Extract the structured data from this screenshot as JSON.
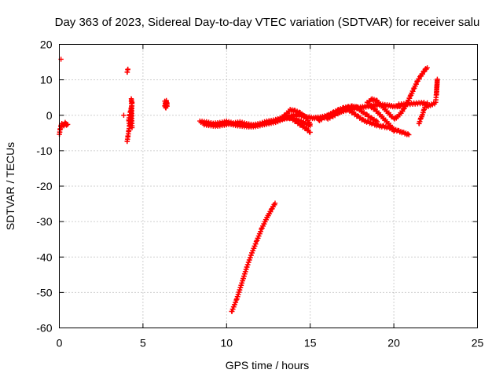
{
  "chart_data": {
    "type": "scatter",
    "title": "Day 363 of 2023, Sidereal Day-to-day VTEC variation (SDTVAR) for receiver salu",
    "xlabel": "GPS time / hours",
    "ylabel": "SDTVAR / TECUs",
    "xlim": [
      0,
      25
    ],
    "ylim": [
      -60,
      20
    ],
    "xticks": [
      0,
      5,
      10,
      15,
      20,
      25
    ],
    "yticks": [
      -60,
      -50,
      -40,
      -30,
      -20,
      -10,
      0,
      10,
      20
    ],
    "grid": true,
    "marker": "+",
    "color": "#ff0000",
    "series": [
      {
        "name": "SDTVAR",
        "segments": [
          {
            "x": [
              0.0,
              0.05,
              0.1,
              0.15,
              0.2,
              0.25,
              0.3,
              0.35,
              0.4,
              0.45,
              0.5
            ],
            "y": [
              -5.5,
              -4.0,
              -3.0,
              -2.5,
              -2.8,
              -3.0,
              -2.6,
              -2.2,
              -2.5,
              -2.8,
              -2.6
            ]
          },
          {
            "x": [
              0.1
            ],
            "y": [
              15.8
            ]
          },
          {
            "x": [
              3.85,
              4.05,
              4.1,
              4.05,
              4.1,
              4.15,
              4.2,
              4.15,
              4.2,
              4.25,
              4.3,
              4.25,
              4.3,
              4.35,
              4.3,
              4.35
            ],
            "y": [
              0.0,
              12.0,
              13.0,
              -7.5,
              -6.0,
              -4.5,
              -3.0,
              -1.5,
              0.0,
              1.0,
              2.0,
              -3.0,
              -1.0,
              3.5,
              4.5,
              -3.5
            ]
          },
          {
            "x": [
              6.3,
              6.35,
              6.4,
              6.45,
              6.35,
              6.4,
              6.3,
              6.45
            ],
            "y": [
              2.5,
              3.2,
              4.0,
              3.0,
              2.0,
              3.6,
              3.8,
              2.6
            ]
          },
          {
            "x": [
              8.4,
              8.8,
              9.2,
              9.6,
              10.0,
              10.4,
              10.8,
              11.2,
              11.6,
              12.0,
              12.4,
              12.8,
              13.2,
              13.6,
              14.0,
              14.4,
              14.8,
              15.2,
              15.6,
              16.0,
              16.4,
              16.8,
              17.2,
              17.6,
              18.0,
              18.4,
              18.8,
              19.2,
              19.6,
              20.0,
              20.4
            ],
            "y": [
              -1.8,
              -2.0,
              -2.4,
              -2.2,
              -1.8,
              -2.3,
              -2.0,
              -2.5,
              -2.8,
              -2.4,
              -1.8,
              -1.5,
              -1.0,
              -0.5,
              0.0,
              0.0,
              -0.5,
              -0.8,
              -0.6,
              -0.2,
              0.5,
              1.0,
              1.5,
              2.0,
              2.2,
              2.5,
              2.8,
              3.0,
              2.8,
              2.5,
              2.6
            ]
          },
          {
            "x": [
              8.6,
              9.0,
              9.4,
              9.8,
              10.2,
              10.6,
              11.0,
              11.4,
              11.8,
              12.2,
              12.6,
              13.0,
              13.4,
              13.8,
              14.2,
              14.6,
              15.0
            ],
            "y": [
              -2.5,
              -2.8,
              -3.0,
              -2.7,
              -2.4,
              -2.8,
              -3.0,
              -3.2,
              -3.0,
              -2.6,
              -2.2,
              -1.8,
              -1.0,
              -0.6,
              -1.2,
              -2.0,
              -3.0
            ]
          },
          {
            "x": [
              13.2,
              13.5,
              13.8,
              14.1,
              14.4,
              14.7,
              15.0
            ],
            "y": [
              -1.0,
              0.0,
              1.5,
              1.2,
              0.6,
              -0.5,
              -2.5
            ]
          },
          {
            "x": [
              13.0,
              13.3,
              13.6,
              13.9,
              14.2,
              14.5,
              14.8,
              15.0
            ],
            "y": [
              -1.5,
              -1.0,
              -0.5,
              -1.0,
              -2.0,
              -3.0,
              -4.0,
              -4.8
            ]
          },
          {
            "x": [
              15.5,
              15.8,
              16.1,
              16.4,
              16.7,
              17.0,
              17.3,
              17.6,
              17.9
            ],
            "y": [
              -1.5,
              -0.8,
              0.0,
              0.8,
              1.5,
              2.0,
              2.3,
              2.2,
              2.0
            ]
          },
          {
            "x": [
              16.0,
              16.3,
              16.6,
              16.9,
              17.2,
              17.5,
              17.8,
              18.1,
              18.4,
              18.7,
              19.0
            ],
            "y": [
              -1.0,
              -0.4,
              0.4,
              1.2,
              2.0,
              2.5,
              2.2,
              1.0,
              0.0,
              -1.0,
              -1.8
            ]
          },
          {
            "x": [
              17.0,
              17.3,
              17.6,
              17.9,
              18.2,
              18.5,
              18.8,
              19.1,
              19.4,
              19.7,
              20.0,
              20.3,
              20.6,
              20.9
            ],
            "y": [
              2.0,
              1.5,
              0.5,
              -0.5,
              -1.5,
              -2.0,
              -2.5,
              -3.0,
              -3.2,
              -3.5,
              -4.0,
              -4.5,
              -5.0,
              -5.5
            ]
          },
          {
            "x": [
              18.4,
              18.7,
              19.0,
              19.3,
              19.6,
              19.9
            ],
            "y": [
              3.5,
              4.5,
              4.0,
              2.5,
              1.0,
              -0.5
            ]
          },
          {
            "x": [
              18.6,
              18.9,
              19.2,
              19.5,
              19.8,
              20.0
            ],
            "y": [
              2.5,
              1.5,
              0.0,
              -1.5,
              -3.0,
              -4.5
            ]
          },
          {
            "x": [
              20.0,
              20.2,
              20.4,
              20.6,
              20.8,
              21.0,
              21.2,
              21.4,
              21.6,
              21.8,
              21.9,
              22.0
            ],
            "y": [
              -1.0,
              -0.5,
              0.5,
              1.8,
              3.5,
              5.5,
              7.5,
              9.5,
              11.0,
              12.3,
              13.0,
              13.4
            ]
          },
          {
            "x": [
              21.5,
              21.6,
              21.7,
              21.8,
              21.9,
              22.0
            ],
            "y": [
              -2.5,
              -1.0,
              0.0,
              1.5,
              3.0,
              3.5
            ]
          },
          {
            "x": [
              20.2,
              20.3,
              21.8,
              22.0,
              22.5,
              22.6,
              22.55
            ],
            "y": [
              2.5,
              3.0,
              3.5,
              2.5,
              3.5,
              10.0,
              5.8
            ]
          },
          {
            "x": [
              10.3,
              10.6,
              10.9,
              11.2,
              11.5,
              11.8,
              12.1,
              12.4,
              12.7,
              12.9
            ],
            "y": [
              -55.5,
              -52.0,
              -47.5,
              -43.0,
              -39.0,
              -35.5,
              -32.0,
              -29.0,
              -26.5,
              -24.8
            ]
          }
        ]
      }
    ]
  }
}
